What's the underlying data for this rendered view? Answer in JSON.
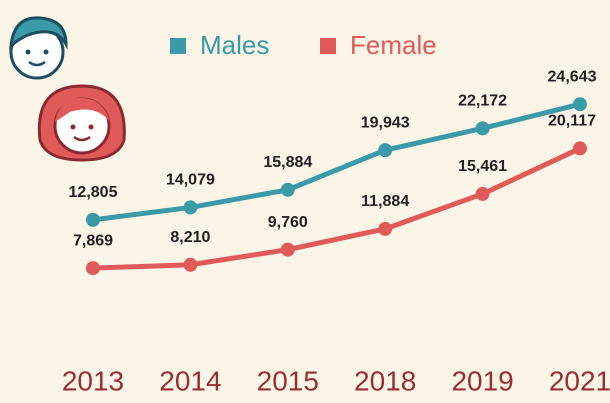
{
  "chart_data": {
    "type": "line",
    "categories": [
      "2013",
      "2014",
      "2015",
      "2018",
      "2019",
      "2021"
    ],
    "series": [
      {
        "name": "Males",
        "color": "#3a9aa8",
        "values": [
          12805,
          14079,
          15884,
          19943,
          22172,
          24643
        ],
        "value_labels": [
          "12,805",
          "14,079",
          "15,884",
          "19,943",
          "22,172",
          "24,643"
        ]
      },
      {
        "name": "Female",
        "color": "#e05a5a",
        "values": [
          7869,
          8210,
          9760,
          11884,
          15461,
          20117
        ],
        "value_labels": [
          "7,869",
          "8,210",
          "9,760",
          "11,884",
          "15,461",
          "20,117"
        ]
      }
    ],
    "ylim": [
      0,
      35000
    ]
  }
}
